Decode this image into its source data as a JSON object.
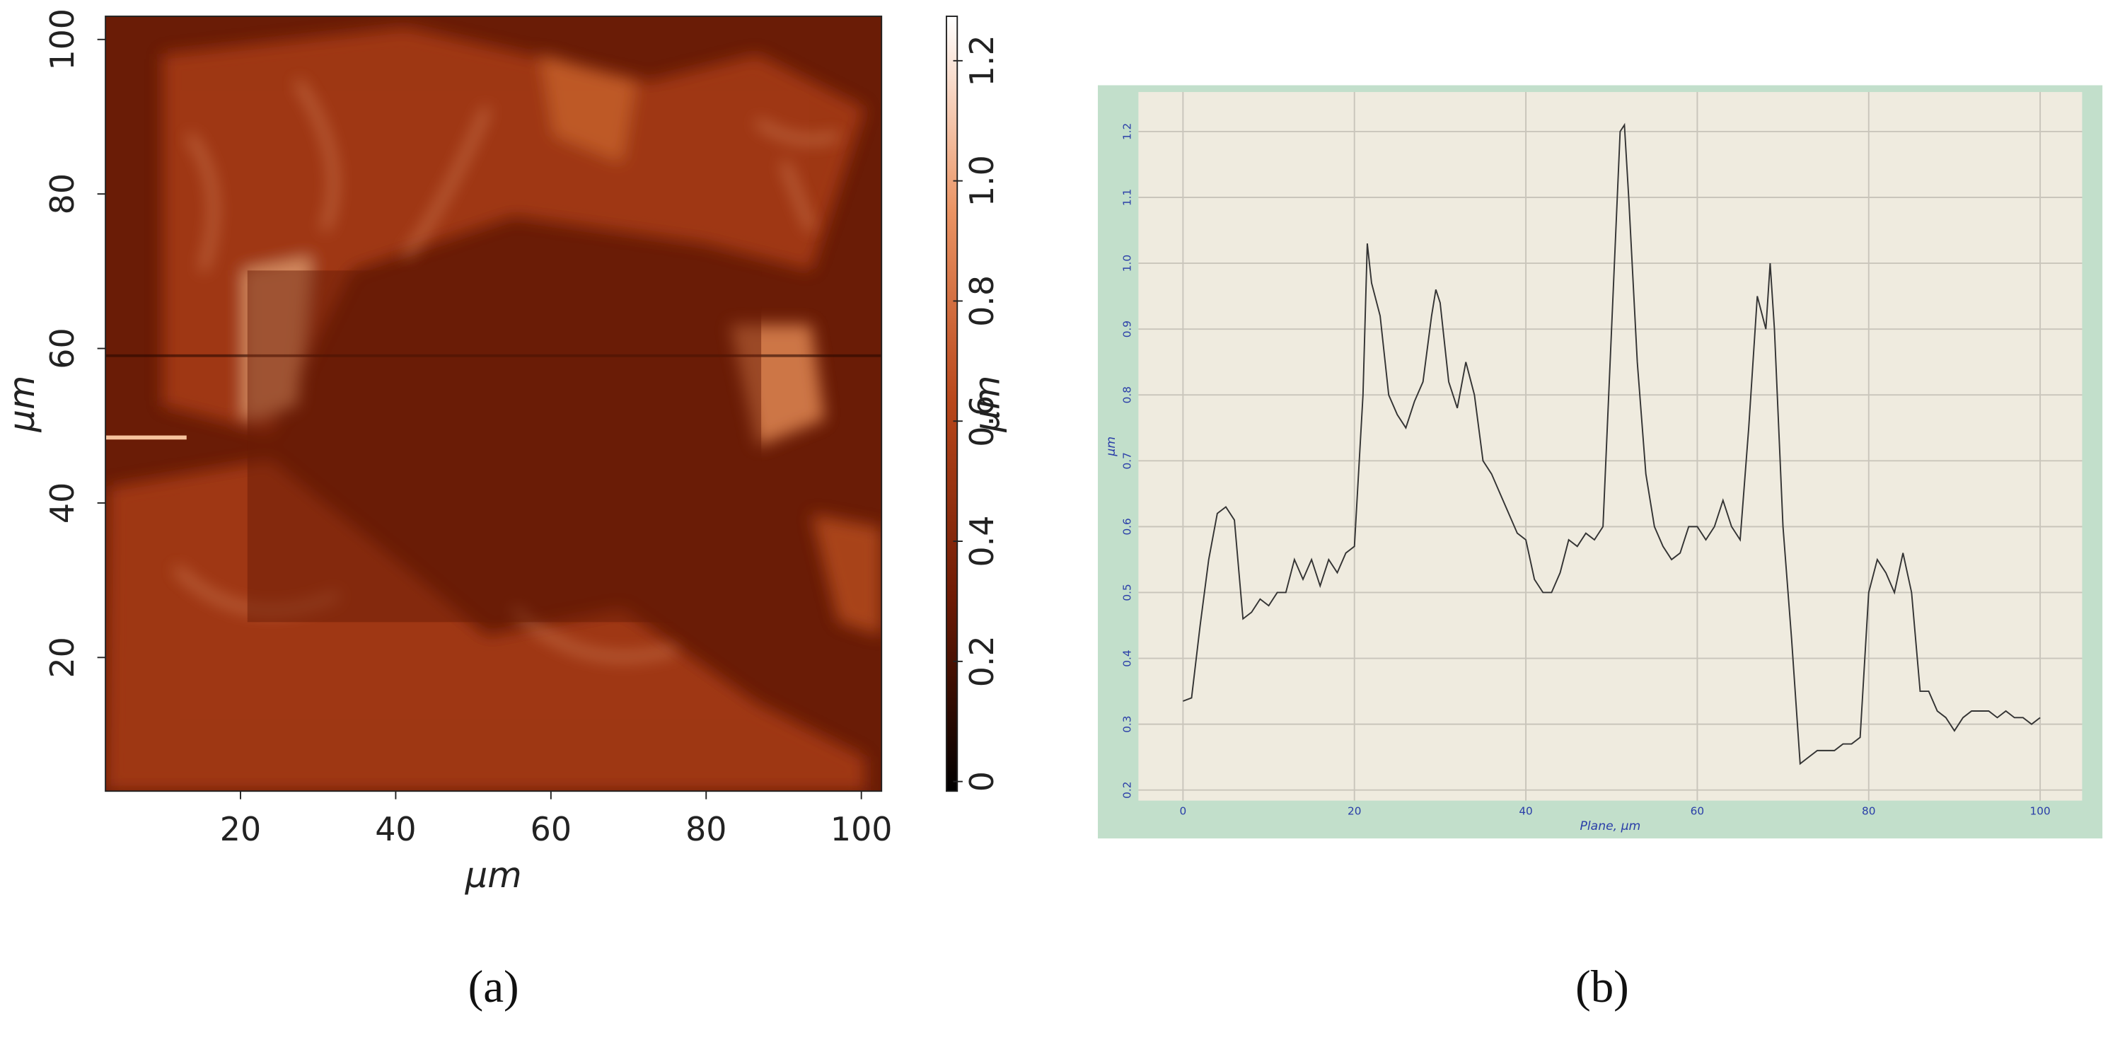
{
  "chart_data": [
    {
      "type": "image",
      "caption": "(a)",
      "xlabel": "μm",
      "ylabel": "μm",
      "colorbar_label": "μm",
      "xlim": [
        2.6,
        102.6
      ],
      "ylim": [
        2.7,
        103
      ],
      "xticks": [
        20,
        40,
        60,
        80,
        100
      ],
      "yticks": [
        20,
        40,
        60,
        80,
        100
      ],
      "colorbar_lim": [
        -0.016,
        1.274
      ],
      "colorbar_ticks": [
        0,
        0.2,
        0.4,
        0.6,
        0.8,
        {
          "value": 1,
          "label": "1.0"
        },
        1.2
      ],
      "colormap": [
        "#000000",
        "#6e1a04",
        "#b8461a",
        "#eb9464",
        "#ffffff"
      ]
    },
    {
      "type": "line",
      "caption": "(b)",
      "xlabel": "Plane, μm",
      "ylabel": "μm",
      "color": "#333333",
      "grid": true,
      "xlim": [
        -5.2,
        104.9
      ],
      "ylim": [
        0.184,
        1.26
      ],
      "xticks": [
        0,
        20,
        40,
        60,
        80,
        100
      ],
      "yticks": [
        0.2,
        0.3,
        0.4,
        0.5,
        0.6,
        0.7,
        0.8,
        0.9,
        {
          "value": 1,
          "label": "1.0"
        },
        1.1,
        1.2
      ],
      "x": [
        0,
        1,
        2,
        3,
        4,
        5,
        6,
        7,
        8,
        9,
        10,
        11,
        12,
        13,
        14,
        15,
        16,
        17,
        18,
        19,
        20,
        21,
        21.5,
        22,
        23,
        24,
        25,
        26,
        27,
        28,
        29,
        29.5,
        30,
        31,
        32,
        33,
        34,
        35,
        36,
        37,
        38,
        39,
        40,
        41,
        42,
        43,
        44,
        45,
        46,
        47,
        48,
        49,
        50,
        51,
        51.5,
        52,
        53,
        54,
        55,
        56,
        57,
        58,
        59,
        60,
        61,
        62,
        63,
        64,
        65,
        66,
        67,
        68,
        68.5,
        69,
        70,
        71,
        72,
        73,
        74,
        75,
        76,
        77,
        78,
        79,
        80,
        81,
        82,
        83,
        84,
        85,
        86,
        87,
        88,
        89,
        90,
        91,
        92,
        93,
        94,
        95,
        96,
        97,
        98,
        99,
        100
      ],
      "values": [
        0.335,
        0.34,
        0.45,
        0.55,
        0.62,
        0.63,
        0.61,
        0.46,
        0.47,
        0.49,
        0.48,
        0.5,
        0.5,
        0.55,
        0.52,
        0.55,
        0.51,
        0.55,
        0.53,
        0.56,
        0.57,
        0.8,
        1.03,
        0.97,
        0.92,
        0.8,
        0.77,
        0.75,
        0.79,
        0.82,
        0.92,
        0.96,
        0.94,
        0.82,
        0.78,
        0.85,
        0.8,
        0.7,
        0.68,
        0.65,
        0.62,
        0.59,
        0.58,
        0.52,
        0.5,
        0.5,
        0.53,
        0.58,
        0.57,
        0.59,
        0.58,
        0.6,
        0.9,
        1.2,
        1.21,
        1.1,
        0.85,
        0.68,
        0.6,
        0.57,
        0.55,
        0.56,
        0.6,
        0.6,
        0.58,
        0.6,
        0.64,
        0.6,
        0.58,
        0.75,
        0.95,
        0.9,
        1.0,
        0.9,
        0.6,
        0.43,
        0.24,
        0.25,
        0.26,
        0.26,
        0.26,
        0.27,
        0.27,
        0.28,
        0.5,
        0.55,
        0.53,
        0.5,
        0.56,
        0.5,
        0.35,
        0.35,
        0.32,
        0.31,
        0.29,
        0.31,
        0.32,
        0.32,
        0.32,
        0.31,
        0.32,
        0.31,
        0.31,
        0.3,
        0.31
      ]
    }
  ]
}
